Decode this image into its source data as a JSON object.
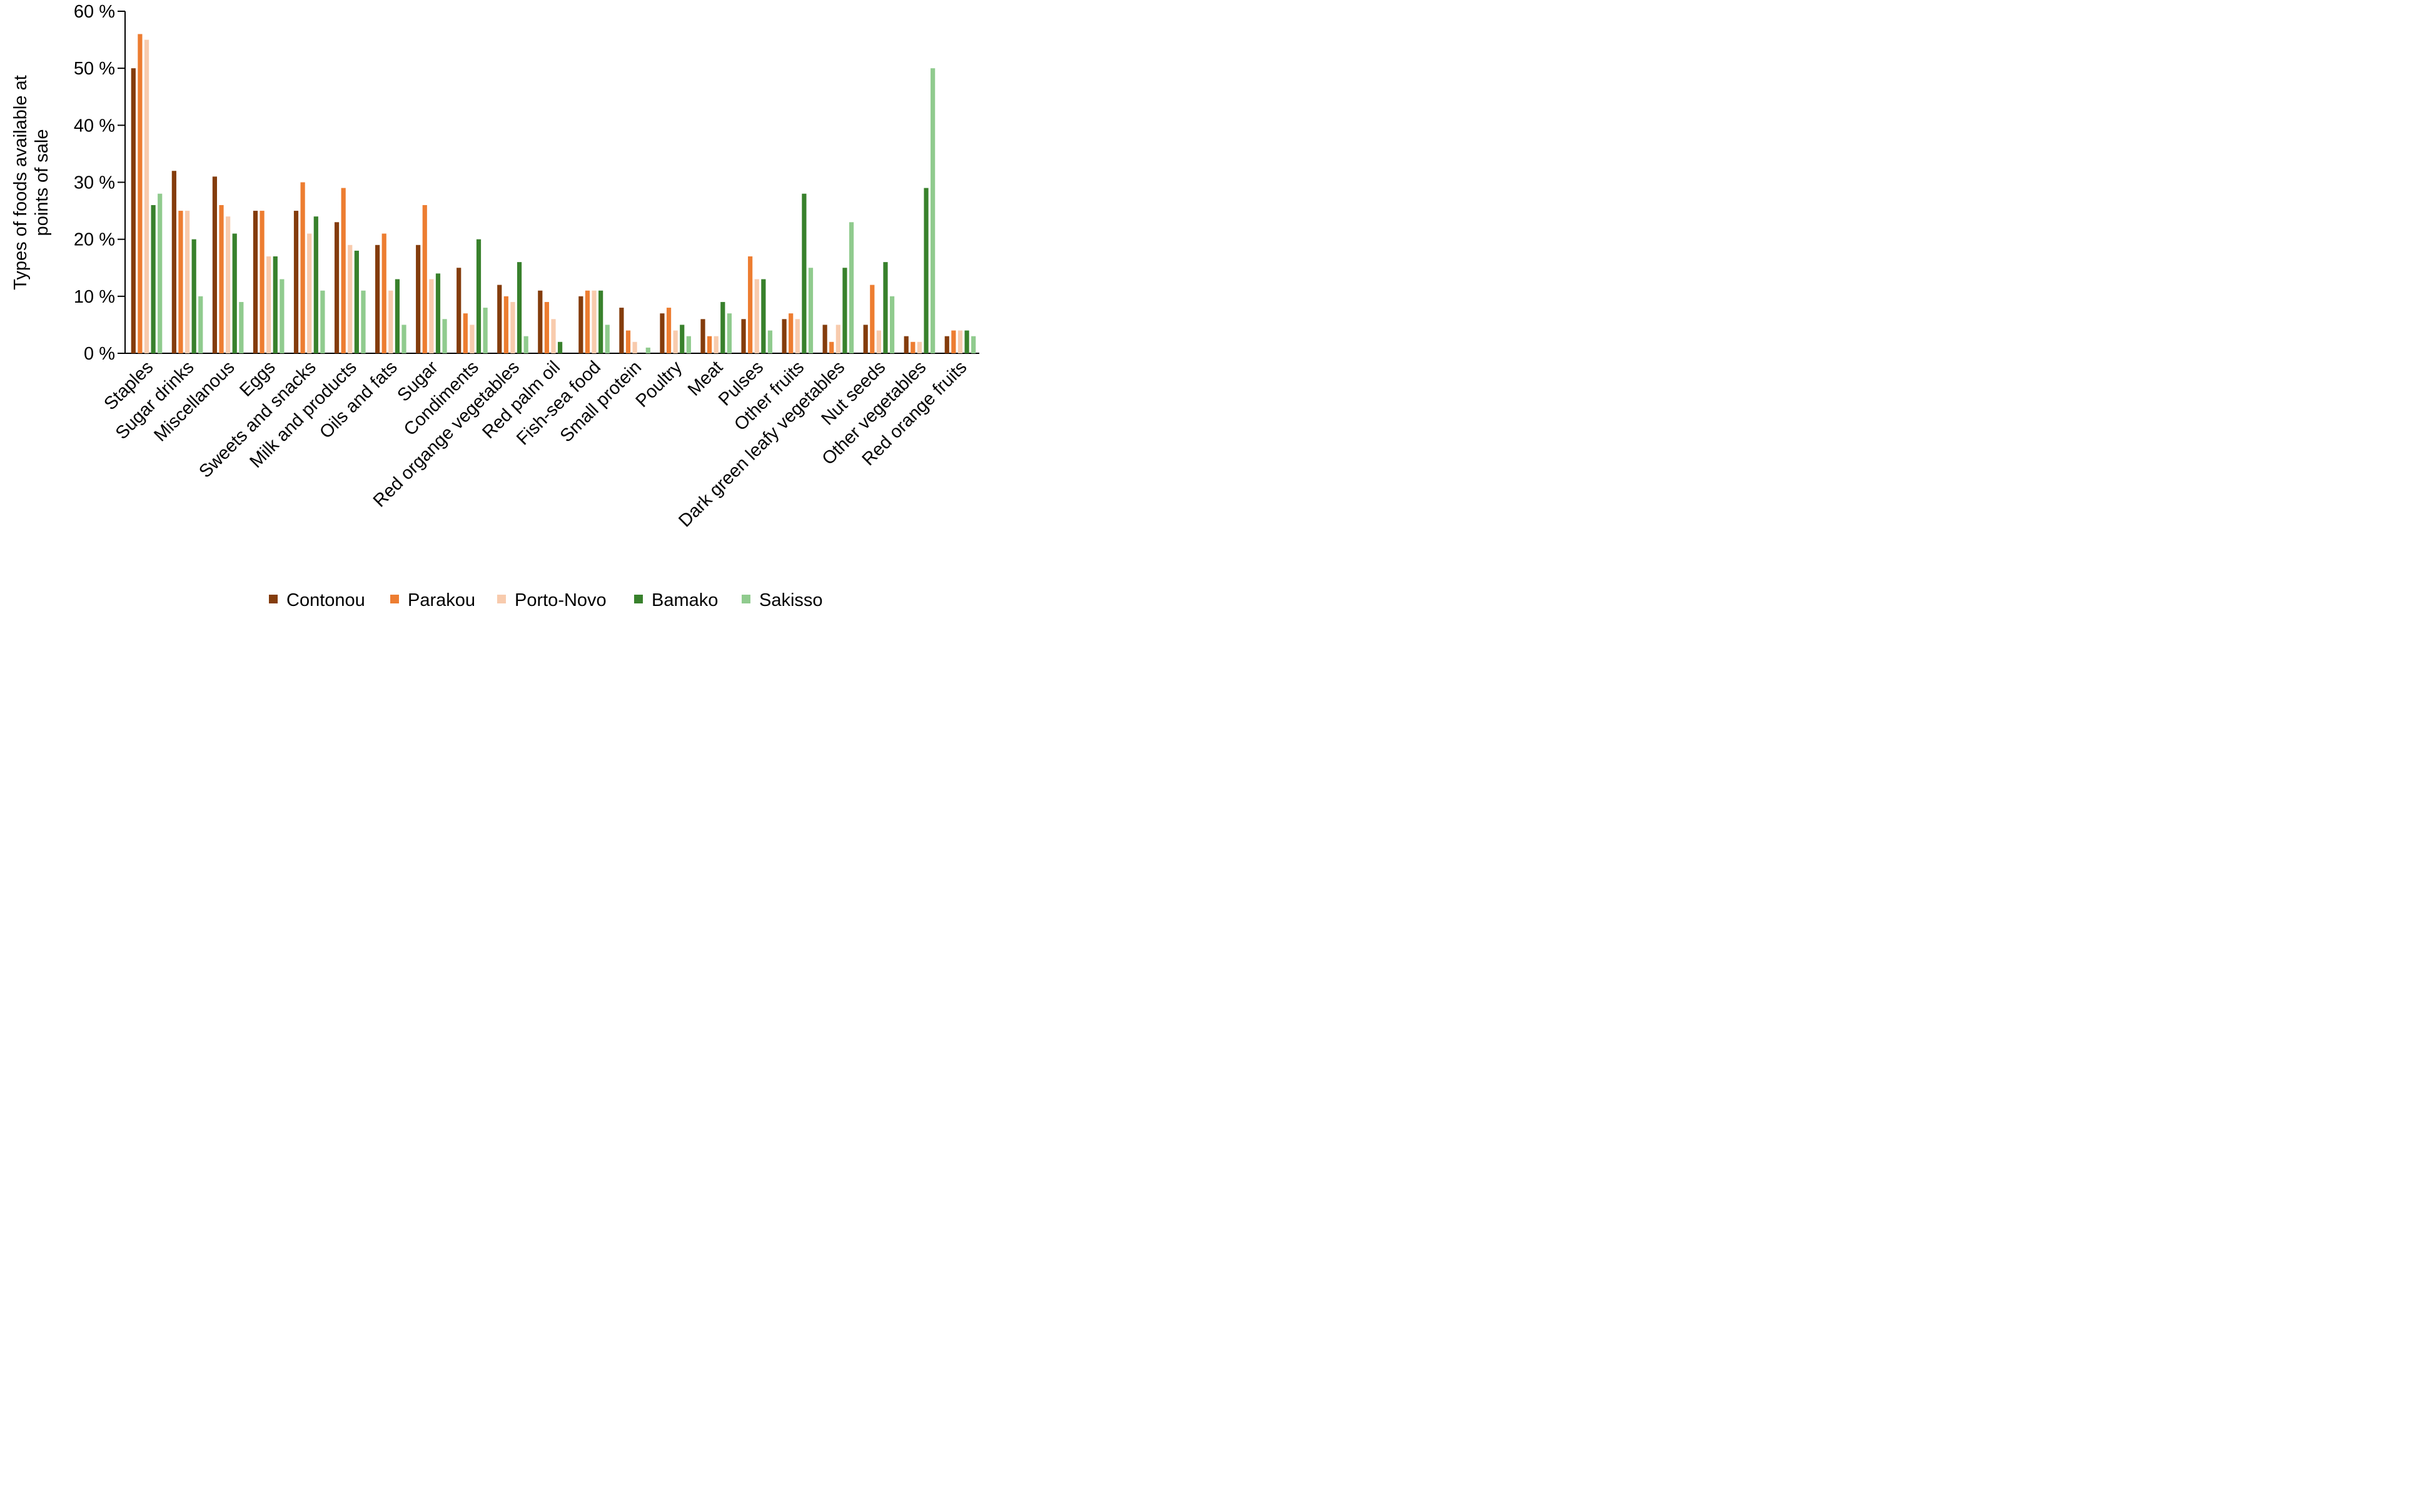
{
  "chart_data": {
    "type": "bar",
    "ylabel": [
      "Types of foods available at",
      "points of sale"
    ],
    "ylim": [
      0,
      60
    ],
    "y_ticks": [
      {
        "value": 0,
        "label": "0 %"
      },
      {
        "value": 10,
        "label": "10 %"
      },
      {
        "value": 20,
        "label": "20 %"
      },
      {
        "value": 30,
        "label": "30 %"
      },
      {
        "value": 40,
        "label": "40 %"
      },
      {
        "value": 50,
        "label": "50 %"
      },
      {
        "value": 60,
        "label": "60 %"
      }
    ],
    "grid": false,
    "legend_position": "bottom",
    "categories": [
      "Staples",
      "Sugar drinks",
      "Miscellanous",
      "Eggs",
      "Sweets and snacks",
      "Milk and products",
      "Oils and fats",
      "Sugar",
      "Condiments",
      "Red organge vegetables",
      "Red palm oil",
      "Fish-sea food",
      "Small protein",
      "Poultry",
      "Meat",
      "Pulses",
      "Other fruits",
      "Dark green leafy vegetables",
      "Nut seeds",
      "Other vegetables",
      "Red orange fruits"
    ],
    "series": [
      {
        "name": "Contonou",
        "color": "#843C0C",
        "values": [
          50,
          32,
          31,
          25,
          25,
          23,
          19,
          19,
          15,
          12,
          11,
          10,
          8,
          7,
          6,
          6,
          6,
          5,
          5,
          3,
          3
        ]
      },
      {
        "name": "Parakou",
        "color": "#ED7D31",
        "values": [
          56,
          25,
          26,
          25,
          30,
          29,
          21,
          26,
          7,
          10,
          9,
          11,
          4,
          8,
          3,
          17,
          7,
          2,
          12,
          2,
          4
        ]
      },
      {
        "name": "Porto-Novo",
        "color": "#F8CBAD",
        "values": [
          55,
          25,
          24,
          17,
          21,
          19,
          11,
          13,
          5,
          9,
          6,
          11,
          2,
          4,
          3,
          13,
          6,
          5,
          4,
          2,
          4
        ]
      },
      {
        "name": "Bamako",
        "color": "#38812C",
        "values": [
          26,
          20,
          21,
          17,
          24,
          18,
          13,
          14,
          20,
          16,
          2,
          11,
          0,
          5,
          9,
          13,
          28,
          15,
          16,
          29,
          4
        ]
      },
      {
        "name": "Sakisso",
        "color": "#90CB8E",
        "values": [
          28,
          10,
          9,
          13,
          11,
          11,
          5,
          6,
          8,
          3,
          0,
          5,
          1,
          3,
          7,
          4,
          15,
          23,
          10,
          50,
          3
        ]
      }
    ]
  }
}
